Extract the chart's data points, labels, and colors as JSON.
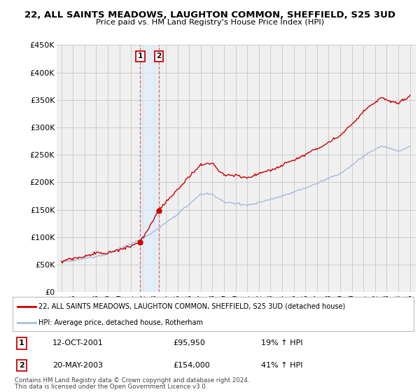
{
  "title": "22, ALL SAINTS MEADOWS, LAUGHTON COMMON, SHEFFIELD, S25 3UD",
  "subtitle": "Price paid vs. HM Land Registry's House Price Index (HPI)",
  "red_label": "22, ALL SAINTS MEADOWS, LAUGHTON COMMON, SHEFFIELD, S25 3UD (detached house)",
  "blue_label": "HPI: Average price, detached house, Rotherham",
  "transactions": [
    {
      "num": 1,
      "date": "12-OCT-2001",
      "price": 95950,
      "pct": "19% ↑ HPI",
      "year": 2001.79
    },
    {
      "num": 2,
      "date": "20-MAY-2003",
      "price": 154000,
      "pct": "41% ↑ HPI",
      "year": 2003.38
    }
  ],
  "footer": "Contains HM Land Registry data © Crown copyright and database right 2024.\nThis data is licensed under the Open Government Licence v3.0.",
  "ylim": [
    0,
    450000
  ],
  "yticks": [
    0,
    50000,
    100000,
    150000,
    200000,
    250000,
    300000,
    350000,
    400000,
    450000
  ],
  "ytick_labels": [
    "£0",
    "£50K",
    "£100K",
    "£150K",
    "£200K",
    "£250K",
    "£300K",
    "£350K",
    "£400K",
    "£450K"
  ],
  "xlim_start": 1994.6,
  "xlim_end": 2025.5,
  "background_color": "#ffffff",
  "plot_bg_color": "#f0f0f0",
  "grid_color": "#cccccc",
  "red_color": "#cc0000",
  "blue_color": "#aabbdd",
  "shade_color": "#ddeeff",
  "marker_color": "#cc0000",
  "vline_color": "#dd4444"
}
